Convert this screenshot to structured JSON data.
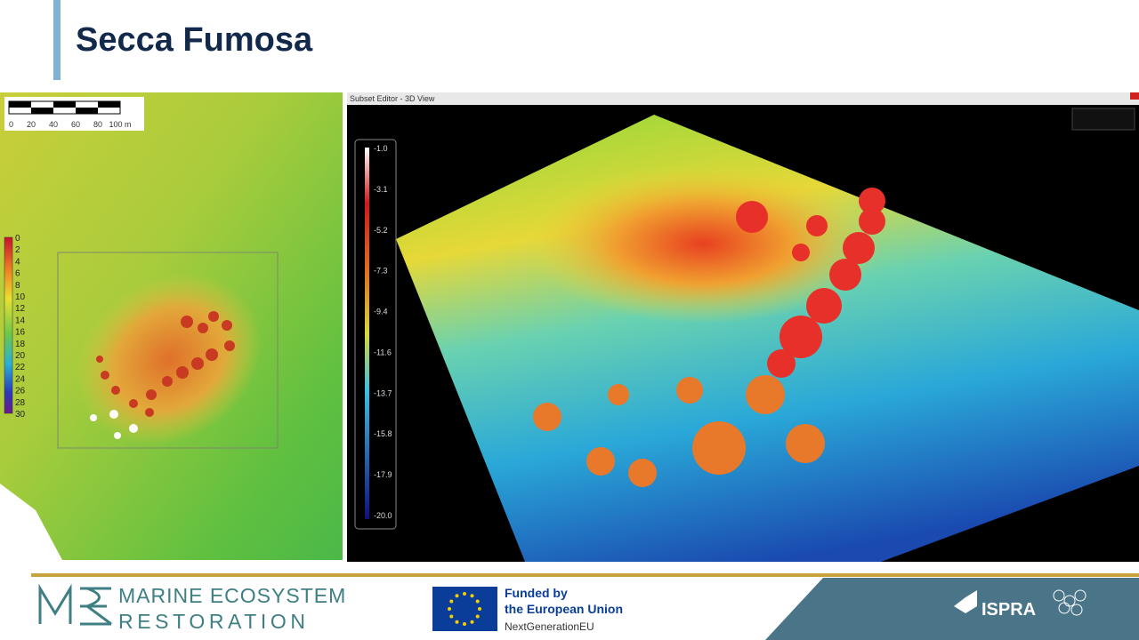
{
  "header": {
    "title": "Secca Fumosa"
  },
  "left_map": {
    "scale_labels": [
      "0",
      "20",
      "40",
      "60",
      "80",
      "100 m"
    ],
    "depth_legend": [
      "0",
      "2",
      "4",
      "6",
      "8",
      "10",
      "12",
      "14",
      "16",
      "18",
      "20",
      "22",
      "24",
      "26",
      "28",
      "30"
    ]
  },
  "right_view": {
    "window_title": "Subset Editor - 3D View",
    "depth_legend": [
      "-1.0",
      "-3.1",
      "-5.2",
      "-7.3",
      "-9.4",
      "-11.6",
      "-13.7",
      "-15.8",
      "-17.9",
      "-20.0"
    ]
  },
  "footer": {
    "mer_logo": "MER",
    "mer_line1": "MARINE ECOSYSTEM",
    "mer_line2": "RESTORATION",
    "eu_line1": "Funded by",
    "eu_line2": "the European Union",
    "eu_line3": "NextGenerationEU",
    "ispra": "ISPRA"
  }
}
